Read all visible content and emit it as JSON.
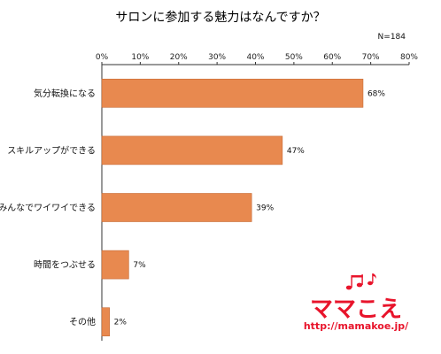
{
  "chart_data": {
    "type": "bar",
    "orientation": "horizontal",
    "title": "サロンに参加する魅力はなんですか？",
    "note": "N=184",
    "categories": [
      "気分転換になる",
      "スキルアップができる",
      "みんなでワイワイできる",
      "時間をつぶせる",
      "その他"
    ],
    "values": [
      68,
      47,
      39,
      7,
      2
    ],
    "value_suffix": "%",
    "xlim": [
      0,
      80
    ],
    "xticks": [
      0,
      10,
      20,
      30,
      40,
      50,
      60,
      70,
      80
    ],
    "xtick_labels": [
      "0%",
      "10%",
      "20%",
      "30%",
      "40%",
      "50%",
      "60%",
      "70%",
      "80%"
    ],
    "axis_position": "top",
    "grid": false,
    "bar_color": "#e8894f",
    "bar_edge_color": "#c56a35"
  },
  "logo": {
    "text": "ママこえ",
    "url": "http://mamakoe.jp/",
    "color": "#e8142b"
  }
}
